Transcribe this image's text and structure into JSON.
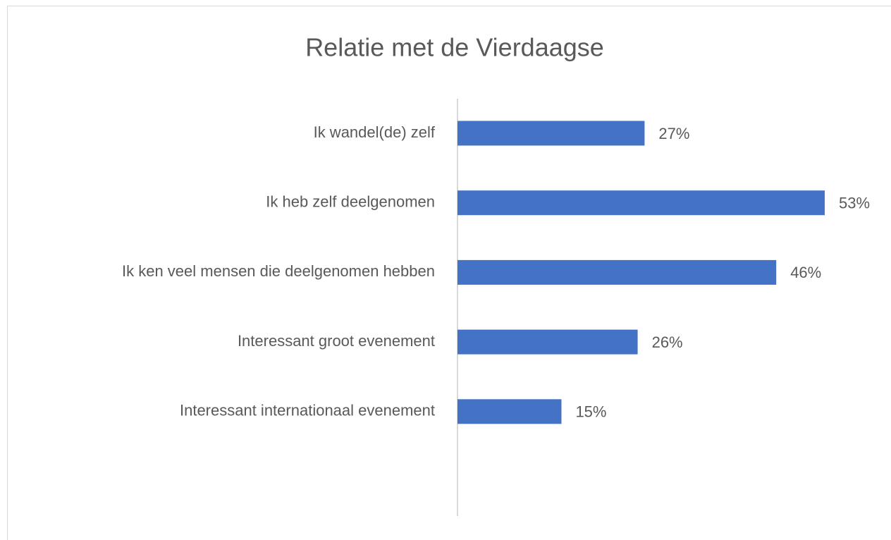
{
  "chart_data": {
    "type": "bar",
    "orientation": "horizontal",
    "title": "Relatie met de Vierdaagse",
    "categories": [
      "Ik wandel(de) zelf",
      "Ik heb zelf deelgenomen",
      "Ik ken veel mensen die deelgenomen hebben",
      "Interessant groot evenement",
      "Interessant internationaal evenement"
    ],
    "values": [
      27,
      53,
      46,
      26,
      15
    ],
    "value_labels": [
      "27%",
      "53%",
      "46%",
      "26%",
      "15%"
    ],
    "color": "#4472c4"
  }
}
